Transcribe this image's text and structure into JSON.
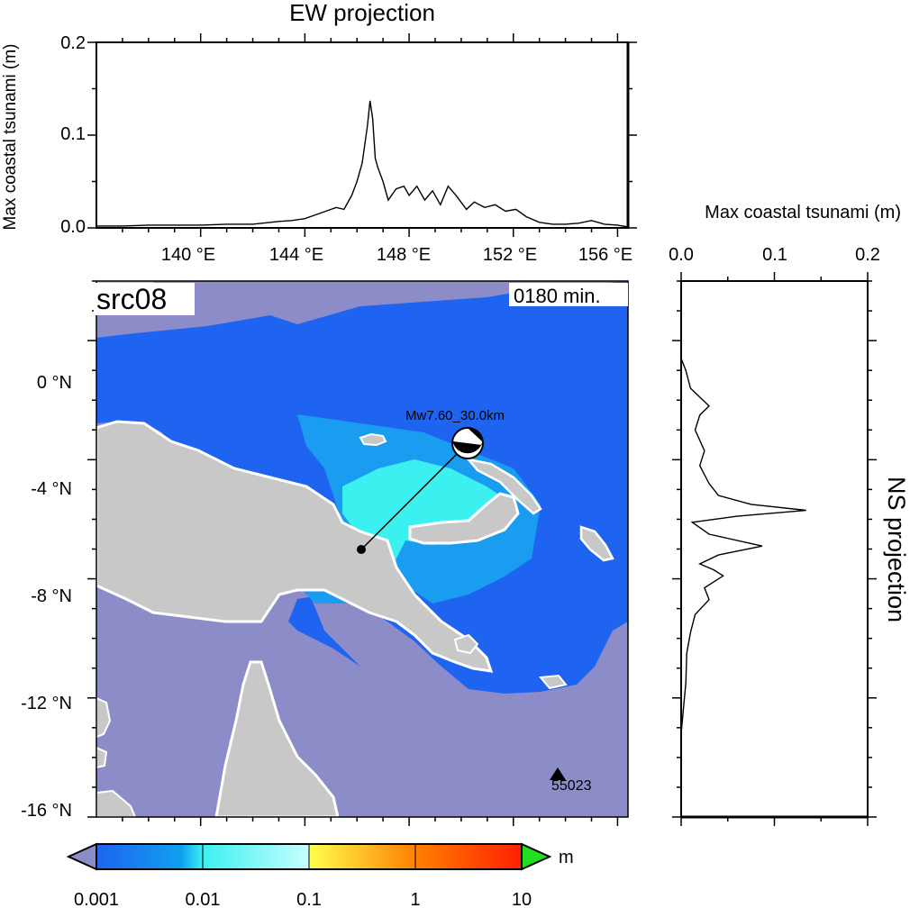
{
  "ew_panel": {
    "title": "EW projection",
    "ylabel": "Max coastal tsunami (m)",
    "y_ticks": [
      "0.0",
      "0.1",
      "0.2"
    ],
    "x_ticks": [
      "140 °E",
      "144 °E",
      "148 °E",
      "152 °E",
      "156 °E"
    ]
  },
  "ns_panel": {
    "title": "NS projection",
    "xlabel": "Max coastal tsunami (m)",
    "x_ticks": [
      "0.0",
      "0.1",
      "0.2"
    ]
  },
  "map": {
    "source_label": "src08",
    "time_label": "0180 min.",
    "event_label": "Mw7.60_30.0km",
    "station_label": "55023",
    "lat_ticks": [
      "0 °N",
      "-4 °N",
      "-8 °N",
      "-12 °N",
      "-16 °N"
    ],
    "colors": {
      "ocean_unaffected": "#8c8cc8",
      "land": "#c8c8c8",
      "coast": "#ffffff",
      "wave_low": "#1e64f0",
      "wave_mid": "#3cf0f0"
    }
  },
  "colorbar": {
    "unit": "m",
    "tick_labels": [
      "0.001",
      "0.01",
      "0.1",
      "1",
      "10"
    ],
    "colors": [
      "#1e64f0",
      "#3cf0f0",
      "#ffff50",
      "#ff8000",
      "#ff2000"
    ],
    "under_color": "#8c8cc8",
    "over_color": "#22dd22"
  },
  "chart_data": [
    {
      "type": "line",
      "title": "EW projection",
      "xlabel": "",
      "ylabel": "Max coastal tsunami (m)",
      "xlim": [
        136.0,
        156.4
      ],
      "ylim": [
        0,
        0.2
      ],
      "x": [
        136.0,
        137.0,
        138.0,
        139.0,
        140.0,
        141.0,
        142.0,
        143.0,
        143.5,
        144.0,
        144.4,
        144.8,
        145.2,
        145.5,
        145.8,
        146.0,
        146.2,
        146.4,
        146.5,
        146.6,
        146.7,
        146.8,
        147.0,
        147.2,
        147.5,
        147.8,
        148.0,
        148.3,
        148.6,
        148.9,
        149.2,
        149.5,
        149.8,
        150.2,
        150.5,
        150.9,
        151.3,
        151.7,
        152.1,
        152.5,
        153.0,
        153.5,
        154.0,
        154.5,
        155.0,
        155.5,
        156.0,
        156.4
      ],
      "y": [
        0.002,
        0.002,
        0.003,
        0.003,
        0.003,
        0.004,
        0.004,
        0.007,
        0.008,
        0.01,
        0.014,
        0.018,
        0.022,
        0.02,
        0.035,
        0.05,
        0.07,
        0.11,
        0.137,
        0.118,
        0.075,
        0.065,
        0.05,
        0.03,
        0.042,
        0.045,
        0.035,
        0.045,
        0.03,
        0.04,
        0.025,
        0.045,
        0.035,
        0.02,
        0.028,
        0.022,
        0.025,
        0.018,
        0.02,
        0.012,
        0.006,
        0.004,
        0.004,
        0.005,
        0.008,
        0.004,
        0.003,
        0.001
      ]
    },
    {
      "type": "line",
      "title": "NS projection",
      "xlabel": "Max coastal tsunami (m)",
      "ylabel": "",
      "xlim": [
        0,
        0.2
      ],
      "ylim": [
        -16,
        2
      ],
      "x": [
        0.0,
        0.005,
        0.01,
        0.02,
        0.03,
        0.02,
        0.015,
        0.025,
        0.02,
        0.03,
        0.04,
        0.075,
        0.134,
        0.06,
        0.012,
        0.03,
        0.087,
        0.04,
        0.02,
        0.035,
        0.045,
        0.025,
        0.03,
        0.015,
        0.01,
        0.006,
        0.005,
        0.002,
        0.0
      ],
      "y": [
        -0.6,
        -1.0,
        -1.6,
        -1.9,
        -2.2,
        -2.5,
        -3.0,
        -3.7,
        -4.2,
        -4.8,
        -5.2,
        -5.5,
        -5.7,
        -5.9,
        -6.1,
        -6.5,
        -6.9,
        -7.2,
        -7.5,
        -7.7,
        -7.9,
        -8.3,
        -8.7,
        -9.2,
        -9.8,
        -10.5,
        -11.5,
        -12.5,
        -13.2
      ]
    }
  ]
}
